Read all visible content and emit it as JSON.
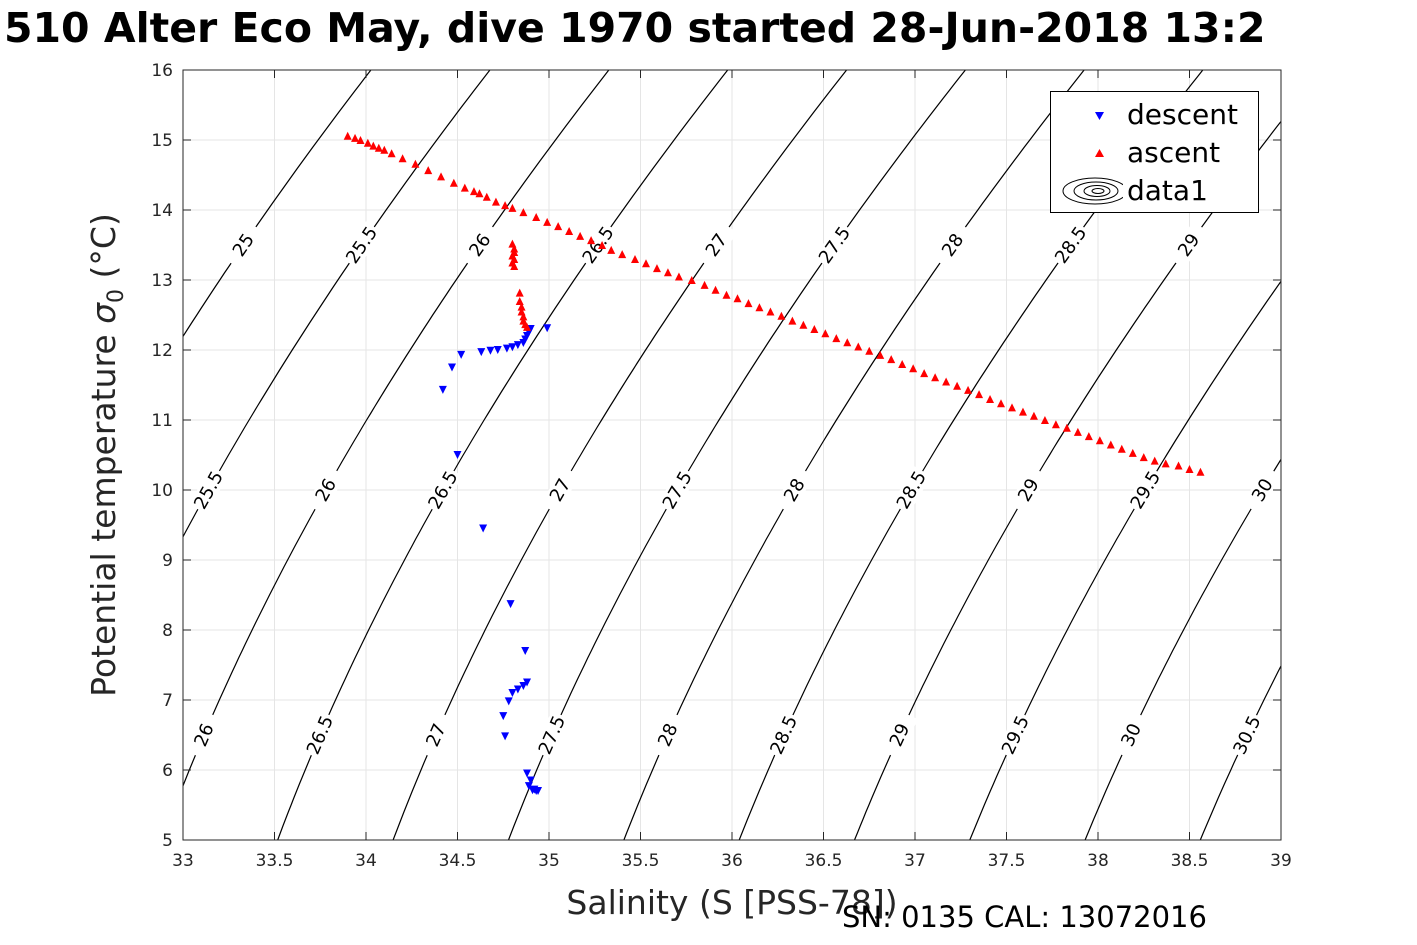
{
  "title": "510 Alter Eco May, dive 1970 started 28-Jun-2018 13:2",
  "footer": "SN: 0135  CAL: 13072016",
  "colors": {
    "descent": "#0000ff",
    "ascent": "#ff0000",
    "contour": "#000000",
    "grid": "#e5e5e5"
  },
  "legend": {
    "items": [
      "descent",
      "ascent",
      "data1"
    ]
  },
  "chart_data": {
    "type": "scatter",
    "xlabel": "Salinity (S [PSS-78])",
    "ylabel_main": "Potential temperature ",
    "ylabel_symbol": "σ",
    "ylabel_sub": "0",
    "ylabel_unit": " (°C)",
    "xlim": [
      33,
      39
    ],
    "ylim": [
      5,
      16
    ],
    "xticks": [
      "33",
      "33.5",
      "34",
      "34.5",
      "35",
      "35.5",
      "36",
      "36.5",
      "37",
      "37.5",
      "38",
      "38.5",
      "39"
    ],
    "yticks": [
      "5",
      "6",
      "7",
      "8",
      "9",
      "10",
      "11",
      "12",
      "13",
      "14",
      "15",
      "16"
    ],
    "grid": true,
    "legend_position": "top-right",
    "contour_levels": [
      25,
      25.5,
      26,
      26.5,
      27,
      27.5,
      28,
      28.5,
      29,
      29.5,
      30,
      30.5
    ],
    "contour_label_text": [
      "25",
      "25.5",
      "26",
      "26.5",
      "27",
      "27.5",
      "28",
      "28.5",
      "29",
      "29.5",
      "30",
      "30.5"
    ],
    "series": [
      {
        "name": "descent",
        "marker": "triangle-down",
        "points": [
          [
            34.99,
            12.31
          ],
          [
            34.9,
            12.3
          ],
          [
            34.89,
            12.25
          ],
          [
            34.88,
            12.2
          ],
          [
            34.87,
            12.15
          ],
          [
            34.86,
            12.1
          ],
          [
            34.83,
            12.07
          ],
          [
            34.8,
            12.04
          ],
          [
            34.77,
            12.02
          ],
          [
            34.72,
            12.0
          ],
          [
            34.68,
            11.99
          ],
          [
            34.63,
            11.97
          ],
          [
            34.52,
            11.93
          ],
          [
            34.47,
            11.75
          ],
          [
            34.42,
            11.43
          ],
          [
            34.5,
            10.5
          ],
          [
            34.64,
            9.45
          ],
          [
            34.79,
            8.37
          ],
          [
            34.87,
            7.7
          ],
          [
            34.88,
            7.25
          ],
          [
            34.86,
            7.2
          ],
          [
            34.83,
            7.15
          ],
          [
            34.8,
            7.1
          ],
          [
            34.78,
            6.98
          ],
          [
            34.75,
            6.77
          ],
          [
            34.76,
            6.48
          ],
          [
            34.88,
            5.95
          ],
          [
            34.9,
            5.85
          ],
          [
            34.89,
            5.77
          ],
          [
            34.92,
            5.72
          ],
          [
            34.93,
            5.7
          ],
          [
            34.91,
            5.71
          ],
          [
            34.94,
            5.7
          ]
        ]
      },
      {
        "name": "ascent",
        "marker": "triangle-up",
        "points": [
          [
            34.8,
            13.52
          ],
          [
            34.81,
            13.45
          ],
          [
            34.81,
            13.4
          ],
          [
            34.8,
            13.35
          ],
          [
            34.81,
            13.3
          ],
          [
            34.8,
            13.25
          ],
          [
            34.81,
            13.2
          ],
          [
            34.84,
            12.82
          ],
          [
            34.84,
            12.7
          ],
          [
            34.85,
            12.62
          ],
          [
            34.85,
            12.55
          ],
          [
            34.86,
            12.48
          ],
          [
            34.86,
            12.42
          ],
          [
            34.87,
            12.37
          ],
          [
            34.88,
            12.33
          ],
          [
            33.9,
            15.06
          ],
          [
            33.94,
            15.03
          ],
          [
            33.97,
            15.0
          ],
          [
            34.01,
            14.96
          ],
          [
            34.04,
            14.92
          ],
          [
            34.07,
            14.89
          ],
          [
            34.1,
            14.86
          ],
          [
            34.14,
            14.81
          ],
          [
            34.2,
            14.74
          ],
          [
            34.27,
            14.66
          ],
          [
            34.34,
            14.57
          ],
          [
            34.41,
            14.48
          ],
          [
            34.48,
            14.39
          ],
          [
            34.54,
            14.32
          ],
          [
            34.59,
            14.27
          ],
          [
            34.62,
            14.24
          ],
          [
            34.66,
            14.19
          ],
          [
            34.71,
            14.12
          ],
          [
            34.76,
            14.07
          ],
          [
            34.8,
            14.03
          ],
          [
            34.86,
            13.97
          ],
          [
            34.93,
            13.9
          ],
          [
            34.99,
            13.83
          ],
          [
            35.05,
            13.77
          ],
          [
            35.11,
            13.7
          ],
          [
            35.17,
            13.63
          ],
          [
            35.23,
            13.57
          ],
          [
            35.29,
            13.5
          ],
          [
            35.34,
            13.43
          ],
          [
            35.4,
            13.37
          ],
          [
            35.47,
            13.3
          ],
          [
            35.53,
            13.24
          ],
          [
            35.59,
            13.17
          ],
          [
            35.65,
            13.11
          ],
          [
            35.71,
            13.05
          ],
          [
            35.78,
            13.0
          ],
          [
            35.85,
            12.93
          ],
          [
            35.91,
            12.86
          ],
          [
            35.97,
            12.79
          ],
          [
            36.03,
            12.74
          ],
          [
            36.09,
            12.67
          ],
          [
            36.15,
            12.61
          ],
          [
            36.21,
            12.55
          ],
          [
            36.27,
            12.49
          ],
          [
            36.33,
            12.42
          ],
          [
            36.39,
            12.36
          ],
          [
            36.45,
            12.3
          ],
          [
            36.51,
            12.24
          ],
          [
            36.57,
            12.17
          ],
          [
            36.63,
            12.11
          ],
          [
            36.69,
            12.05
          ],
          [
            36.75,
            11.99
          ],
          [
            36.81,
            11.93
          ],
          [
            36.87,
            11.87
          ],
          [
            36.93,
            11.8
          ],
          [
            36.99,
            11.74
          ],
          [
            37.05,
            11.67
          ],
          [
            37.11,
            11.61
          ],
          [
            37.17,
            11.55
          ],
          [
            37.23,
            11.49
          ],
          [
            37.29,
            11.43
          ],
          [
            37.35,
            11.37
          ],
          [
            37.41,
            11.3
          ],
          [
            37.47,
            11.24
          ],
          [
            37.53,
            11.18
          ],
          [
            37.59,
            11.12
          ],
          [
            37.65,
            11.06
          ],
          [
            37.71,
            11.0
          ],
          [
            37.77,
            10.94
          ],
          [
            37.83,
            10.89
          ],
          [
            37.89,
            10.83
          ],
          [
            37.95,
            10.77
          ],
          [
            38.01,
            10.71
          ],
          [
            38.07,
            10.65
          ],
          [
            38.13,
            10.59
          ],
          [
            38.19,
            10.53
          ],
          [
            38.25,
            10.47
          ],
          [
            38.31,
            10.42
          ],
          [
            38.37,
            10.38
          ],
          [
            38.44,
            10.35
          ],
          [
            38.5,
            10.3
          ],
          [
            38.56,
            10.26
          ]
        ]
      }
    ]
  }
}
